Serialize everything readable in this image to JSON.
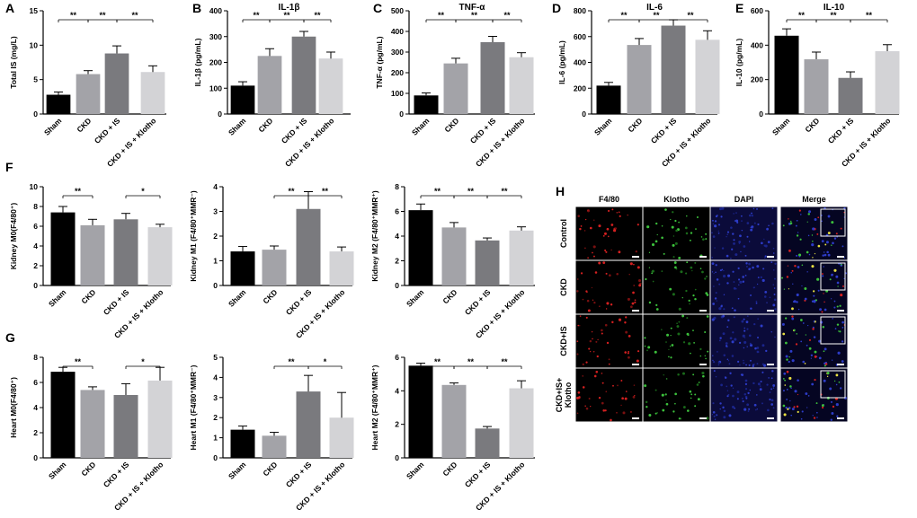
{
  "figure": {
    "colors": {
      "Sham": "#000000",
      "CKD": "#a3a3a8",
      "CKD + IS": "#7a7a7e",
      "CKD + IS + Klotho": "#d3d3d6"
    }
  },
  "microscopy": {
    "panel_letter": "H",
    "columns": [
      "F4/80",
      "Klotho",
      "DAPI",
      "Merge"
    ],
    "rows": [
      "Control",
      "CKD",
      "CKD+IS",
      "CKD+IS+\nKlotho"
    ]
  },
  "chart_data": [
    {
      "type": "bar",
      "panel": "A",
      "title": "",
      "xlabel": "",
      "ylabel": "Total IS (mg/L)",
      "categories": [
        "Sham",
        "CKD",
        "CKD + IS",
        "CKD + IS + Klotho"
      ],
      "values": [
        2.8,
        5.8,
        8.8,
        6.1
      ],
      "errors": [
        0.4,
        0.5,
        1.1,
        0.9
      ],
      "ylim": [
        0,
        15
      ],
      "yticks": [
        0,
        5,
        10,
        15
      ],
      "significance": [
        {
          "from": 0,
          "to": 1,
          "label": "**"
        },
        {
          "from": 1,
          "to": 2,
          "label": "**"
        },
        {
          "from": 2,
          "to": 3,
          "label": "**"
        }
      ]
    },
    {
      "type": "bar",
      "panel": "B",
      "title": "IL-1β",
      "xlabel": "",
      "ylabel": "IL-1β (pg/mL)",
      "categories": [
        "Sham",
        "CKD",
        "CKD + IS",
        "CKD + IS + Klotho"
      ],
      "values": [
        110,
        225,
        300,
        215
      ],
      "errors": [
        15,
        28,
        20,
        25
      ],
      "ylim": [
        0,
        400
      ],
      "yticks": [
        0,
        100,
        200,
        300,
        400
      ],
      "significance": [
        {
          "from": 0,
          "to": 1,
          "label": "**"
        },
        {
          "from": 1,
          "to": 2,
          "label": "**"
        },
        {
          "from": 2,
          "to": 3,
          "label": "**"
        }
      ]
    },
    {
      "type": "bar",
      "panel": "C",
      "title": "TNF-α",
      "xlabel": "",
      "ylabel": "TNF-α (pg/mL)",
      "categories": [
        "Sham",
        "CKD",
        "CKD + IS",
        "CKD + IS + Klotho"
      ],
      "values": [
        90,
        245,
        348,
        275
      ],
      "errors": [
        12,
        25,
        28,
        22
      ],
      "ylim": [
        0,
        500
      ],
      "yticks": [
        0,
        100,
        200,
        300,
        400,
        500
      ],
      "significance": [
        {
          "from": 0,
          "to": 1,
          "label": "**"
        },
        {
          "from": 1,
          "to": 2,
          "label": "**"
        },
        {
          "from": 2,
          "to": 3,
          "label": "**"
        }
      ]
    },
    {
      "type": "bar",
      "panel": "D",
      "title": "IL-6",
      "xlabel": "",
      "ylabel": "IL-6 (pg/mL)",
      "categories": [
        "Sham",
        "CKD",
        "CKD + IS",
        "CKD + IS + Klotho"
      ],
      "values": [
        220,
        535,
        685,
        575
      ],
      "errors": [
        25,
        50,
        45,
        70
      ],
      "ylim": [
        0,
        800
      ],
      "yticks": [
        0,
        200,
        400,
        600,
        800
      ],
      "significance": [
        {
          "from": 0,
          "to": 1,
          "label": "**"
        },
        {
          "from": 1,
          "to": 2,
          "label": "**"
        },
        {
          "from": 2,
          "to": 3,
          "label": "**"
        }
      ]
    },
    {
      "type": "bar",
      "panel": "E",
      "title": "IL-10",
      "xlabel": "",
      "ylabel": "IL-10 (pg/mL)",
      "categories": [
        "Sham",
        "CKD",
        "CKD + IS",
        "CKD + IS + Klotho"
      ],
      "values": [
        455,
        318,
        210,
        365
      ],
      "errors": [
        40,
        42,
        35,
        38
      ],
      "ylim": [
        0,
        600
      ],
      "yticks": [
        0,
        200,
        400,
        600
      ],
      "significance": [
        {
          "from": 0,
          "to": 1,
          "label": "**"
        },
        {
          "from": 1,
          "to": 2,
          "label": "**"
        },
        {
          "from": 2,
          "to": 3,
          "label": "**"
        }
      ]
    },
    {
      "type": "bar",
      "panel": "F",
      "title": "",
      "xlabel": "",
      "ylabel": "Kidney M0(F4/80⁺)",
      "categories": [
        "Sham",
        "CKD",
        "CKD + IS",
        "CKD + IS + Klotho"
      ],
      "values": [
        7.4,
        6.1,
        6.7,
        5.9
      ],
      "errors": [
        0.6,
        0.6,
        0.6,
        0.3
      ],
      "ylim": [
        0,
        10
      ],
      "yticks": [
        0,
        2,
        4,
        6,
        8,
        10
      ],
      "significance": [
        {
          "from": 0,
          "to": 1,
          "label": "**"
        },
        {
          "from": 2,
          "to": 3,
          "label": "*"
        }
      ]
    },
    {
      "type": "bar",
      "panel": "",
      "title": "",
      "xlabel": "",
      "ylabel": "Kidney M1 (F4/80⁺MMR⁻)",
      "categories": [
        "Sham",
        "CKD",
        "CKD + IS",
        "CKD + IS + Klotho"
      ],
      "values": [
        1.38,
        1.45,
        3.1,
        1.38
      ],
      "errors": [
        0.2,
        0.15,
        0.7,
        0.18
      ],
      "ylim": [
        0,
        4
      ],
      "yticks": [
        0,
        1,
        2,
        3,
        4
      ],
      "significance": [
        {
          "from": 1,
          "to": 2,
          "label": "**"
        },
        {
          "from": 2,
          "to": 3,
          "label": "**"
        }
      ]
    },
    {
      "type": "bar",
      "panel": "",
      "title": "",
      "xlabel": "",
      "ylabel": "Kidney M2 (F4/80⁺MMR⁺)",
      "categories": [
        "Sham",
        "CKD",
        "CKD + IS",
        "CKD + IS + Klotho"
      ],
      "values": [
        6.1,
        4.7,
        3.65,
        4.45
      ],
      "errors": [
        0.5,
        0.4,
        0.2,
        0.3
      ],
      "ylim": [
        0,
        8
      ],
      "yticks": [
        0,
        2,
        4,
        6,
        8
      ],
      "significance": [
        {
          "from": 0,
          "to": 1,
          "label": "**"
        },
        {
          "from": 1,
          "to": 2,
          "label": "**"
        },
        {
          "from": 2,
          "to": 3,
          "label": "**"
        }
      ]
    },
    {
      "type": "bar",
      "panel": "G",
      "title": "",
      "xlabel": "",
      "ylabel": "Heart M0(F4/80⁺)",
      "categories": [
        "Sham",
        "CKD",
        "CKD + IS",
        "CKD + IS + Klotho"
      ],
      "values": [
        6.85,
        5.4,
        5.0,
        6.15
      ],
      "errors": [
        0.35,
        0.25,
        0.9,
        1.05
      ],
      "ylim": [
        0,
        8
      ],
      "yticks": [
        0,
        2,
        4,
        6,
        8
      ],
      "significance": [
        {
          "from": 0,
          "to": 1,
          "label": "**"
        },
        {
          "from": 2,
          "to": 3,
          "label": "*"
        }
      ]
    },
    {
      "type": "bar",
      "panel": "",
      "title": "",
      "xlabel": "",
      "ylabel": "Heart M1 (F4/80⁺MMR⁻)",
      "categories": [
        "Sham",
        "CKD",
        "CKD + IS",
        "CKD + IS + Klotho"
      ],
      "values": [
        1.4,
        1.1,
        3.3,
        2.0
      ],
      "errors": [
        0.18,
        0.17,
        0.8,
        1.25
      ],
      "ylim": [
        0,
        5
      ],
      "yticks": [
        0,
        1,
        2,
        3,
        4,
        5
      ],
      "significance": [
        {
          "from": 1,
          "to": 2,
          "label": "**"
        },
        {
          "from": 2,
          "to": 3,
          "label": "*"
        }
      ]
    },
    {
      "type": "bar",
      "panel": "",
      "title": "",
      "xlabel": "",
      "ylabel": "Heart  M2 (F4/80⁺MMR⁺)",
      "categories": [
        "Sham",
        "CKD",
        "CKD + IS",
        "CKD + IS + Klotho"
      ],
      "values": [
        5.5,
        4.35,
        1.75,
        4.15
      ],
      "errors": [
        0.15,
        0.12,
        0.12,
        0.45
      ],
      "ylim": [
        0,
        6
      ],
      "yticks": [
        0,
        2,
        4,
        6
      ],
      "significance": [
        {
          "from": 0,
          "to": 1,
          "label": "**"
        },
        {
          "from": 1,
          "to": 2,
          "label": "**"
        },
        {
          "from": 2,
          "to": 3,
          "label": "**"
        }
      ]
    }
  ]
}
